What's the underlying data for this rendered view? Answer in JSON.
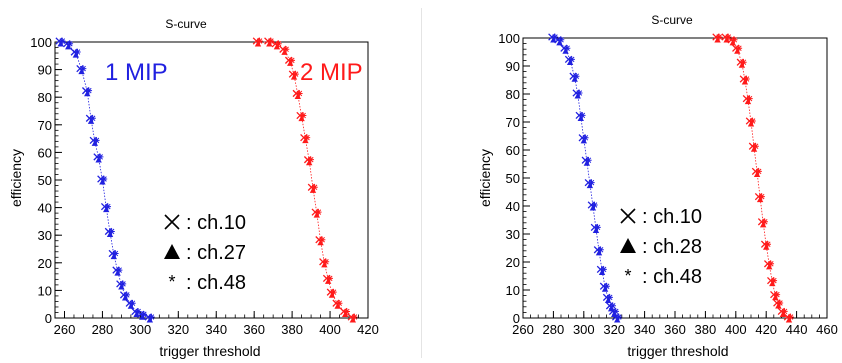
{
  "chart_data": [
    {
      "type": "scatter",
      "title": "S-curve",
      "xlabel": "trigger threshold",
      "ylabel": "efficiency",
      "xlim": [
        255,
        420
      ],
      "ylim": [
        0,
        100
      ],
      "xticks": [
        260,
        280,
        300,
        320,
        340,
        360,
        380,
        400,
        420
      ],
      "yticks": [
        0,
        10,
        20,
        30,
        40,
        50,
        60,
        70,
        80,
        90,
        100
      ],
      "grid": false,
      "annotations": [
        {
          "text": "1 MIP",
          "color": "#2020e0"
        },
        {
          "text": "2 MIP",
          "color": "#ff1a1a"
        }
      ],
      "legend": [
        {
          "marker": "cross",
          "label": ": ch.10"
        },
        {
          "marker": "triangle",
          "label": ": ch.27"
        },
        {
          "marker": "star",
          "label": ": ch.48"
        }
      ],
      "series": [
        {
          "color": "#2020e0",
          "marker": "mixed",
          "x": [
            258,
            262,
            266,
            269,
            272,
            274,
            276,
            278,
            280,
            282,
            284,
            286,
            288,
            290,
            292,
            295,
            298,
            301,
            305
          ],
          "y": [
            100,
            99,
            96,
            90,
            82,
            72,
            64,
            58,
            50,
            40,
            31,
            23,
            17,
            12,
            8,
            5,
            2,
            1,
            0
          ]
        },
        {
          "color": "#ff1a1a",
          "marker": "mixed",
          "x": [
            362,
            368,
            372,
            376,
            379,
            381,
            383,
            385,
            387,
            389,
            391,
            393,
            395,
            397,
            399,
            401,
            404,
            408,
            412
          ],
          "y": [
            100,
            100,
            99,
            97,
            93,
            88,
            81,
            73,
            65,
            57,
            47,
            38,
            28,
            20,
            14,
            9,
            5,
            2,
            0
          ]
        }
      ]
    },
    {
      "type": "scatter",
      "title": "S-curve",
      "xlabel": "trigger threshold",
      "ylabel": "efficiency",
      "xlim": [
        260,
        460
      ],
      "ylim": [
        0,
        100
      ],
      "xticks": [
        260,
        280,
        300,
        320,
        340,
        360,
        380,
        400,
        420,
        440,
        460
      ],
      "yticks": [
        0,
        10,
        20,
        30,
        40,
        50,
        60,
        70,
        80,
        90,
        100
      ],
      "grid": false,
      "annotations": [],
      "legend": [
        {
          "marker": "cross",
          "label": ": ch.10"
        },
        {
          "marker": "triangle",
          "label": ": ch.28"
        },
        {
          "marker": "star",
          "label": ": ch.48"
        }
      ],
      "series": [
        {
          "color": "#2020e0",
          "marker": "mixed",
          "x": [
            280,
            284,
            288,
            291,
            294,
            296,
            298,
            300,
            302,
            304,
            306,
            308,
            310,
            312,
            314,
            316,
            318,
            320,
            322
          ],
          "y": [
            100,
            99,
            96,
            92,
            86,
            80,
            72,
            64,
            56,
            48,
            40,
            32,
            24,
            17,
            11,
            7,
            4,
            2,
            0
          ]
        },
        {
          "color": "#ff1a1a",
          "marker": "mixed",
          "x": [
            388,
            394,
            398,
            401,
            404,
            406,
            408,
            410,
            412,
            414,
            416,
            418,
            420,
            422,
            424,
            426,
            428,
            431,
            435
          ],
          "y": [
            100,
            100,
            99,
            96,
            91,
            85,
            78,
            70,
            61,
            52,
            43,
            34,
            26,
            19,
            13,
            8,
            5,
            2,
            0
          ]
        }
      ]
    }
  ]
}
